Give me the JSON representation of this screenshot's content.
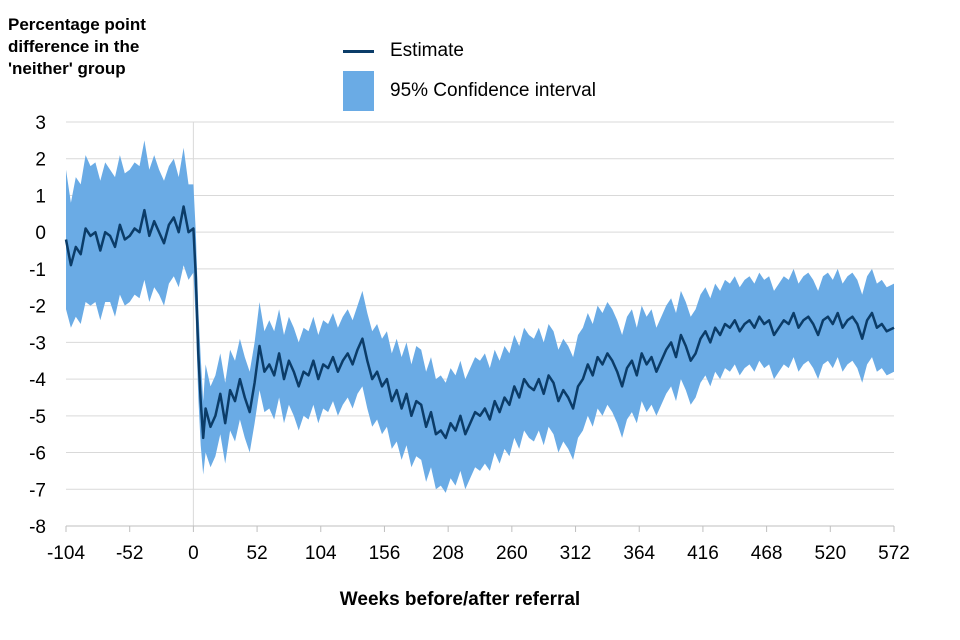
{
  "chart_data": {
    "type": "line",
    "ylabel": "Percentage point difference in the 'neither' group",
    "xlabel": "Weeks before/after referral",
    "ylim": [
      -8,
      3
    ],
    "xlim": [
      -104,
      572
    ],
    "y_ticks": [
      3,
      2,
      1,
      0,
      -1,
      -2,
      -3,
      -4,
      -5,
      -6,
      -7,
      -8
    ],
    "x_ticks": [
      -104,
      -52,
      0,
      52,
      104,
      156,
      208,
      260,
      312,
      364,
      416,
      468,
      520,
      572
    ],
    "grid": "horizontal",
    "legend_position": "top",
    "series": [
      {
        "name": "Estimate",
        "kind": "line",
        "color": "#0b3c68",
        "x": [
          -104,
          -100,
          -96,
          -92,
          -88,
          -84,
          -80,
          -76,
          -72,
          -68,
          -64,
          -60,
          -56,
          -52,
          -48,
          -44,
          -40,
          -36,
          -32,
          -28,
          -24,
          -20,
          -16,
          -12,
          -8,
          -4,
          0,
          2,
          4,
          6,
          8,
          10,
          14,
          18,
          22,
          26,
          30,
          34,
          38,
          42,
          46,
          50,
          54,
          58,
          62,
          66,
          70,
          74,
          78,
          82,
          86,
          90,
          94,
          98,
          102,
          106,
          110,
          114,
          118,
          122,
          126,
          130,
          134,
          138,
          142,
          146,
          150,
          154,
          158,
          162,
          166,
          170,
          174,
          178,
          182,
          186,
          190,
          194,
          198,
          202,
          206,
          210,
          214,
          218,
          222,
          226,
          230,
          234,
          238,
          242,
          246,
          250,
          254,
          258,
          262,
          266,
          270,
          274,
          278,
          282,
          286,
          290,
          294,
          298,
          302,
          306,
          310,
          314,
          318,
          322,
          326,
          330,
          334,
          338,
          342,
          346,
          350,
          354,
          358,
          362,
          366,
          370,
          374,
          378,
          382,
          386,
          390,
          394,
          398,
          402,
          406,
          410,
          414,
          418,
          422,
          426,
          430,
          434,
          438,
          442,
          446,
          450,
          454,
          458,
          462,
          466,
          470,
          474,
          478,
          482,
          486,
          490,
          494,
          498,
          502,
          506,
          510,
          514,
          518,
          522,
          526,
          530,
          534,
          538,
          542,
          546,
          550,
          554,
          558,
          562,
          566,
          572
        ],
        "values": [
          -0.2,
          -0.9,
          -0.4,
          -0.6,
          0.1,
          -0.1,
          0.0,
          -0.5,
          0.0,
          -0.1,
          -0.4,
          0.2,
          -0.2,
          -0.1,
          0.1,
          0.0,
          0.6,
          -0.1,
          0.3,
          0.0,
          -0.3,
          0.2,
          0.4,
          0.0,
          0.7,
          0.0,
          0.1,
          -1.2,
          -3.3,
          -4.6,
          -5.6,
          -4.8,
          -5.3,
          -5.0,
          -4.4,
          -5.2,
          -4.3,
          -4.6,
          -4.0,
          -4.5,
          -4.9,
          -4.1,
          -3.1,
          -3.8,
          -3.6,
          -3.9,
          -3.3,
          -4.0,
          -3.5,
          -3.8,
          -4.2,
          -3.8,
          -3.9,
          -3.5,
          -4.0,
          -3.6,
          -3.7,
          -3.4,
          -3.8,
          -3.5,
          -3.3,
          -3.6,
          -3.2,
          -2.9,
          -3.5,
          -4.0,
          -3.8,
          -4.2,
          -4.0,
          -4.6,
          -4.3,
          -4.8,
          -4.4,
          -5.0,
          -4.6,
          -4.7,
          -5.3,
          -4.9,
          -5.5,
          -5.4,
          -5.6,
          -5.2,
          -5.4,
          -5.0,
          -5.5,
          -5.2,
          -4.9,
          -5.0,
          -4.8,
          -5.1,
          -4.6,
          -4.9,
          -4.5,
          -4.7,
          -4.2,
          -4.5,
          -4.0,
          -4.2,
          -4.3,
          -4.0,
          -4.4,
          -3.9,
          -4.1,
          -4.6,
          -4.3,
          -4.5,
          -4.8,
          -4.2,
          -4.0,
          -3.6,
          -3.9,
          -3.4,
          -3.6,
          -3.3,
          -3.5,
          -3.8,
          -4.2,
          -3.7,
          -3.5,
          -3.9,
          -3.3,
          -3.6,
          -3.4,
          -3.8,
          -3.5,
          -3.2,
          -3.0,
          -3.4,
          -2.8,
          -3.1,
          -3.5,
          -3.3,
          -2.9,
          -2.7,
          -3.0,
          -2.6,
          -2.8,
          -2.5,
          -2.6,
          -2.4,
          -2.7,
          -2.5,
          -2.4,
          -2.6,
          -2.3,
          -2.5,
          -2.4,
          -2.8,
          -2.6,
          -2.4,
          -2.5,
          -2.2,
          -2.6,
          -2.4,
          -2.3,
          -2.5,
          -2.8,
          -2.4,
          -2.3,
          -2.5,
          -2.2,
          -2.6,
          -2.4,
          -2.3,
          -2.5,
          -2.9,
          -2.4,
          -2.2,
          -2.6,
          -2.5,
          -2.7,
          -2.6
        ],
        "ci_lower": [
          -2.1,
          -2.6,
          -2.3,
          -2.5,
          -1.9,
          -2.0,
          -1.9,
          -2.4,
          -1.9,
          -1.9,
          -2.3,
          -1.7,
          -2.0,
          -1.9,
          -1.7,
          -1.8,
          -1.3,
          -1.9,
          -1.5,
          -1.7,
          -2.0,
          -1.4,
          -1.2,
          -1.5,
          -0.9,
          -1.3,
          -1.1,
          -2.4,
          -4.5,
          -5.8,
          -6.6,
          -6.0,
          -6.4,
          -6.1,
          -5.5,
          -6.3,
          -5.4,
          -5.7,
          -5.1,
          -5.6,
          -6.0,
          -5.2,
          -4.3,
          -4.9,
          -4.8,
          -5.1,
          -4.5,
          -5.2,
          -4.7,
          -5.0,
          -5.4,
          -5.0,
          -5.1,
          -4.7,
          -5.2,
          -4.8,
          -4.9,
          -4.6,
          -5.0,
          -4.7,
          -4.5,
          -4.8,
          -4.4,
          -4.2,
          -4.8,
          -5.3,
          -5.1,
          -5.5,
          -5.3,
          -5.9,
          -5.7,
          -6.2,
          -5.8,
          -6.4,
          -6.1,
          -6.2,
          -6.8,
          -6.4,
          -7.0,
          -6.9,
          -7.1,
          -6.7,
          -6.9,
          -6.5,
          -7.0,
          -6.7,
          -6.4,
          -6.5,
          -6.3,
          -6.5,
          -6.0,
          -6.3,
          -5.9,
          -6.1,
          -5.6,
          -5.9,
          -5.4,
          -5.6,
          -5.7,
          -5.4,
          -5.8,
          -5.3,
          -5.5,
          -6.0,
          -5.7,
          -5.9,
          -6.2,
          -5.6,
          -5.4,
          -5.0,
          -5.3,
          -4.8,
          -5.0,
          -4.7,
          -4.9,
          -5.2,
          -5.6,
          -5.1,
          -4.9,
          -5.2,
          -4.6,
          -4.9,
          -4.7,
          -5.0,
          -4.7,
          -4.4,
          -4.2,
          -4.6,
          -4.0,
          -4.3,
          -4.7,
          -4.5,
          -4.1,
          -3.9,
          -4.2,
          -3.8,
          -4.0,
          -3.7,
          -3.8,
          -3.6,
          -3.9,
          -3.7,
          -3.6,
          -3.8,
          -3.5,
          -3.7,
          -3.6,
          -4.0,
          -3.8,
          -3.6,
          -3.7,
          -3.4,
          -3.8,
          -3.6,
          -3.5,
          -3.7,
          -4.0,
          -3.6,
          -3.5,
          -3.7,
          -3.4,
          -3.8,
          -3.6,
          -3.5,
          -3.7,
          -4.1,
          -3.6,
          -3.4,
          -3.8,
          -3.7,
          -3.9,
          -3.8
        ],
        "ci_upper": [
          1.7,
          0.8,
          1.5,
          1.3,
          2.1,
          1.8,
          1.9,
          1.4,
          1.9,
          1.7,
          1.5,
          2.1,
          1.6,
          1.7,
          1.9,
          1.8,
          2.5,
          1.7,
          2.1,
          1.7,
          1.4,
          1.8,
          2.0,
          1.5,
          2.3,
          1.3,
          1.3,
          0.0,
          -2.1,
          -3.4,
          -4.6,
          -3.6,
          -4.2,
          -3.9,
          -3.3,
          -4.1,
          -3.2,
          -3.5,
          -2.9,
          -3.4,
          -3.8,
          -3.0,
          -1.9,
          -2.7,
          -2.4,
          -2.7,
          -2.1,
          -2.8,
          -2.3,
          -2.6,
          -3.0,
          -2.6,
          -2.7,
          -2.3,
          -2.8,
          -2.4,
          -2.5,
          -2.2,
          -2.6,
          -2.3,
          -2.1,
          -2.4,
          -2.0,
          -1.6,
          -2.2,
          -2.7,
          -2.5,
          -2.9,
          -2.7,
          -3.3,
          -2.9,
          -3.4,
          -3.0,
          -3.6,
          -3.1,
          -3.2,
          -3.8,
          -3.4,
          -4.0,
          -3.9,
          -4.1,
          -3.7,
          -3.9,
          -3.5,
          -4.0,
          -3.7,
          -3.4,
          -3.5,
          -3.3,
          -3.7,
          -3.2,
          -3.5,
          -3.1,
          -3.3,
          -2.8,
          -3.1,
          -2.6,
          -2.8,
          -2.9,
          -2.6,
          -3.0,
          -2.5,
          -2.7,
          -3.2,
          -2.9,
          -3.1,
          -3.4,
          -2.8,
          -2.6,
          -2.2,
          -2.5,
          -2.0,
          -2.2,
          -1.9,
          -2.1,
          -2.4,
          -2.8,
          -2.3,
          -2.1,
          -2.6,
          -2.0,
          -2.3,
          -2.1,
          -2.6,
          -2.3,
          -2.0,
          -1.8,
          -2.2,
          -1.6,
          -1.9,
          -2.3,
          -2.1,
          -1.7,
          -1.5,
          -1.8,
          -1.4,
          -1.6,
          -1.3,
          -1.4,
          -1.2,
          -1.5,
          -1.3,
          -1.2,
          -1.4,
          -1.1,
          -1.3,
          -1.2,
          -1.6,
          -1.4,
          -1.2,
          -1.3,
          -1.0,
          -1.4,
          -1.2,
          -1.1,
          -1.3,
          -1.6,
          -1.2,
          -1.1,
          -1.3,
          -1.0,
          -1.4,
          -1.2,
          -1.1,
          -1.3,
          -1.7,
          -1.2,
          -1.0,
          -1.4,
          -1.3,
          -1.5,
          -1.4
        ]
      },
      {
        "name": "95% Confidence interval",
        "kind": "band",
        "color": "#6aabe5"
      }
    ]
  }
}
